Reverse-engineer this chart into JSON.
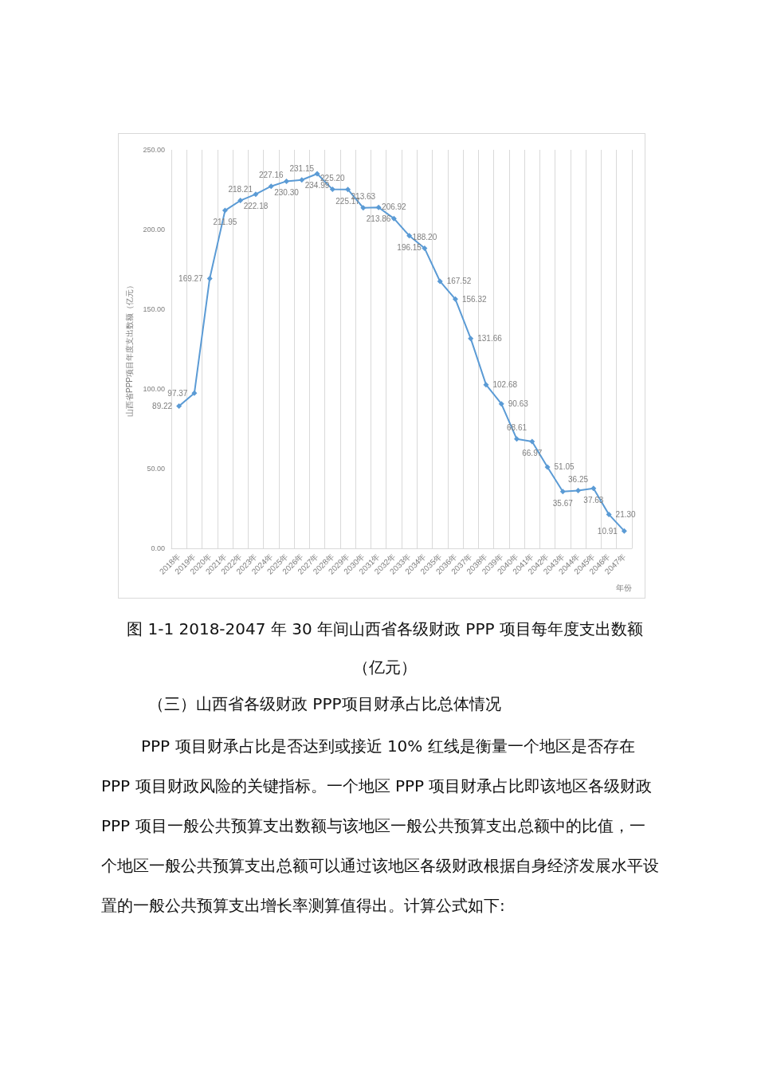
{
  "chart_data": {
    "type": "line",
    "title": "图 1-1 2018-2047 年 30 年间山西省各级财政 PPP 项目每年度支出数额（亿元）",
    "xlabel": "年份",
    "ylabel": "山西省PPP项目年度支出数额（亿元）",
    "categories": [
      "2018年",
      "2019年",
      "2020年",
      "2021年",
      "2022年",
      "2023年",
      "2024年",
      "2025年",
      "2026年",
      "2027年",
      "2028年",
      "2029年",
      "2030年",
      "2031年",
      "2032年",
      "2033年",
      "2034年",
      "2035年",
      "2036年",
      "2037年",
      "2038年",
      "2039年",
      "2040年",
      "2041年",
      "2042年",
      "2043年",
      "2044年",
      "2045年",
      "2046年",
      "2047年"
    ],
    "values": [
      89.22,
      97.37,
      169.27,
      211.95,
      218.21,
      222.18,
      227.16,
      230.3,
      231.15,
      234.99,
      225.2,
      225.17,
      213.63,
      213.86,
      206.92,
      196.15,
      188.2,
      167.52,
      156.32,
      131.66,
      102.68,
      90.63,
      68.61,
      66.97,
      51.05,
      35.67,
      36.25,
      37.63,
      21.3,
      10.91
    ],
    "value_labels": [
      "89.22",
      "97.37",
      "169.27",
      "211.95",
      "218.21",
      "222.18",
      "227.16",
      "230.30",
      "231.15",
      "234.99",
      "225.20",
      "225.17",
      "213.63",
      "213.86",
      "206.92",
      "196.15",
      "188.20",
      "167.52",
      "156.32",
      "131.66",
      "102.68",
      "90.63",
      "68.61",
      "66.97",
      "51.05",
      "35.67",
      "36.25",
      "37.63",
      "21.30",
      "10.91"
    ],
    "color": "#5b9bd5",
    "marker": "diamond",
    "line_style": "solid",
    "grid": "x",
    "ylim": [
      0,
      250
    ],
    "yticks": [
      {
        "value": 0,
        "label": "0.00"
      },
      {
        "value": 50,
        "label": "50.00"
      },
      {
        "value": 100,
        "label": "100.00"
      },
      {
        "value": 150,
        "label": "150.00"
      },
      {
        "value": 200,
        "label": "200.00"
      },
      {
        "value": 250,
        "label": "250.00"
      }
    ],
    "annotations": [
      "（三）山西省各级财政 PPP项目财承占比总体情况",
      "PPP 项目财承占比是否达到或接近 10% 红线是衡量一个地区是否存在 PPP 项目财政风险的关键指标。一个地区 PPP 项目财承占比即该地区各级财政 PPP 项目一般公共预算支出数额与该地区一般公共预算支出总额中的比值，一个地区一般公共预算支出总额可以通过该地区各级财政根据自身经济发展水平设置的一般公共预算支出增长率测算值得出。计算公式如下:"
    ]
  }
}
